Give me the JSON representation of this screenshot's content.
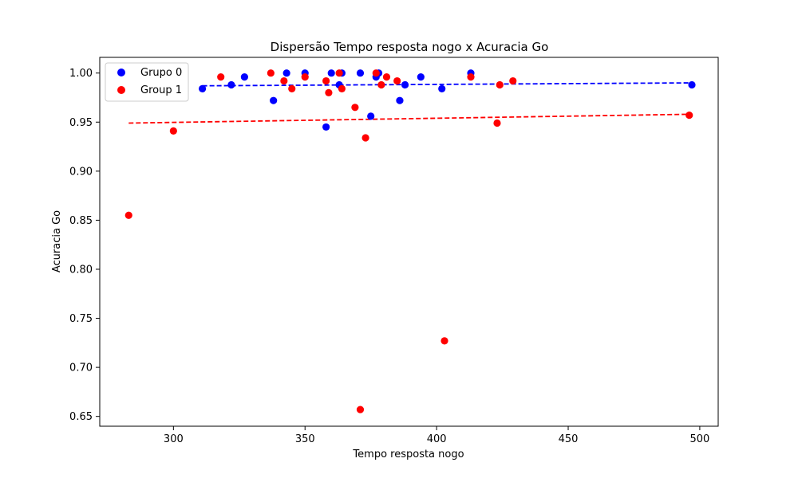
{
  "chart_data": {
    "type": "scatter",
    "title": "Dispersão Tempo resposta nogo x Acuracia Go",
    "xlabel": "Tempo resposta nogo",
    "ylabel": "Acuracia Go",
    "xlim": [
      272,
      507
    ],
    "ylim": [
      0.64,
      1.016
    ],
    "xticks": [
      300,
      350,
      400,
      450,
      500
    ],
    "yticks": [
      0.65,
      0.7,
      0.75,
      0.8,
      0.85,
      0.9,
      0.95,
      1.0
    ],
    "xtick_labels": [
      "300",
      "350",
      "400",
      "450",
      "500"
    ],
    "ytick_labels": [
      "0.65",
      "0.70",
      "0.75",
      "0.80",
      "0.85",
      "0.90",
      "0.95",
      "1.00"
    ],
    "grid": false,
    "legend_position": "top-left",
    "series": [
      {
        "name": "Grupo 0",
        "color": "#0000ff",
        "points": [
          [
            311,
            0.984
          ],
          [
            322,
            0.988
          ],
          [
            327,
            0.996
          ],
          [
            338,
            0.972
          ],
          [
            343,
            1.0
          ],
          [
            350,
            1.0
          ],
          [
            358,
            0.945
          ],
          [
            360,
            1.0
          ],
          [
            363,
            0.988
          ],
          [
            364,
            1.0
          ],
          [
            371,
            1.0
          ],
          [
            375,
            0.956
          ],
          [
            377,
            0.996
          ],
          [
            378,
            1.0
          ],
          [
            386,
            0.972
          ],
          [
            388,
            0.988
          ],
          [
            394,
            0.996
          ],
          [
            402,
            0.984
          ],
          [
            413,
            1.0
          ],
          [
            497,
            0.988
          ]
        ],
        "trend": {
          "x": [
            311,
            497
          ],
          "y": [
            0.987,
            0.99
          ],
          "style": "dashed"
        }
      },
      {
        "name": "Group 1",
        "color": "#ff0000",
        "points": [
          [
            283,
            0.855
          ],
          [
            300,
            0.941
          ],
          [
            318,
            0.996
          ],
          [
            337,
            1.0
          ],
          [
            342,
            0.992
          ],
          [
            345,
            0.984
          ],
          [
            350,
            0.996
          ],
          [
            358,
            0.992
          ],
          [
            359,
            0.98
          ],
          [
            363,
            1.0
          ],
          [
            364,
            0.984
          ],
          [
            369,
            0.965
          ],
          [
            371,
            0.657
          ],
          [
            373,
            0.934
          ],
          [
            377,
            1.0
          ],
          [
            379,
            0.988
          ],
          [
            381,
            0.996
          ],
          [
            385,
            0.992
          ],
          [
            403,
            0.727
          ],
          [
            413,
            0.996
          ],
          [
            423,
            0.949
          ],
          [
            424,
            0.988
          ],
          [
            429,
            0.992
          ],
          [
            496,
            0.957
          ]
        ],
        "trend": {
          "x": [
            283,
            496
          ],
          "y": [
            0.949,
            0.958
          ],
          "style": "dashed"
        }
      }
    ]
  }
}
